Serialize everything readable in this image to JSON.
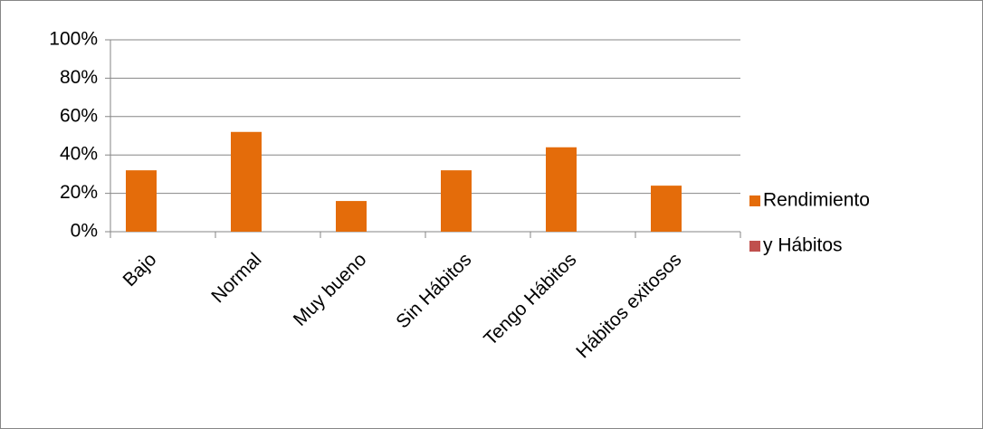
{
  "chart_data": {
    "type": "bar",
    "categories": [
      "Bajo",
      "Normal",
      "Muy bueno",
      "Sin Hábitos",
      "Tengo Hábitos",
      "Hábitos exitosos"
    ],
    "series": [
      {
        "name": "Rendimiento",
        "color": "#e46c0a",
        "values": [
          32,
          52,
          16,
          32,
          44,
          24
        ]
      },
      {
        "name": "y Hábitos",
        "color": "#c0504d",
        "values": [
          null,
          null,
          null,
          null,
          null,
          null
        ]
      }
    ],
    "ylim": [
      0,
      100
    ],
    "yticks": [
      {
        "value": 0,
        "label": "0%"
      },
      {
        "value": 20,
        "label": "20%"
      },
      {
        "value": 40,
        "label": "40%"
      },
      {
        "value": 60,
        "label": "60%"
      },
      {
        "value": 80,
        "label": "80%"
      },
      {
        "value": 100,
        "label": "100%"
      }
    ],
    "grid": true,
    "legend": "right"
  }
}
